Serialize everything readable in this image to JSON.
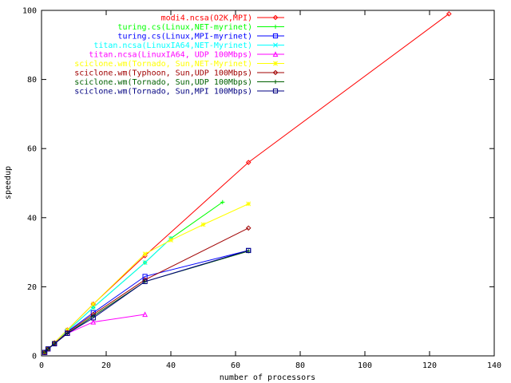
{
  "chart_data": {
    "type": "line",
    "title": "",
    "xlabel": "number of processors",
    "ylabel": "speedup",
    "xlim": [
      0,
      140
    ],
    "ylim": [
      0,
      100
    ],
    "xticks": [
      0,
      20,
      40,
      60,
      80,
      100,
      120,
      140
    ],
    "yticks": [
      0,
      20,
      40,
      60,
      80,
      100
    ],
    "grid": false,
    "legend_position": "top-right",
    "series": [
      {
        "name": "modi4.ncsa(O2K,MPI)",
        "color": "#ff0000",
        "marker": "diamond",
        "points": [
          [
            1,
            1
          ],
          [
            2,
            2
          ],
          [
            4,
            3.8
          ],
          [
            8,
            7.5
          ],
          [
            16,
            15
          ],
          [
            32,
            29
          ],
          [
            64,
            56
          ],
          [
            126,
            99
          ]
        ]
      },
      {
        "name": "turing.cs(Linux,NET-myrinet)",
        "color": "#00ff00",
        "marker": "plus",
        "points": [
          [
            1,
            1
          ],
          [
            2,
            2
          ],
          [
            4,
            3.8
          ],
          [
            8,
            7.2
          ],
          [
            16,
            14
          ],
          [
            32,
            27
          ],
          [
            40,
            34
          ],
          [
            56,
            44.5
          ]
        ]
      },
      {
        "name": "turing.cs(Linux,MPI-myrinet)",
        "color": "#0000ff",
        "marker": "square",
        "points": [
          [
            1,
            1
          ],
          [
            2,
            2
          ],
          [
            4,
            3.6
          ],
          [
            8,
            7
          ],
          [
            16,
            12.5
          ],
          [
            32,
            23
          ],
          [
            64,
            30.5
          ]
        ]
      },
      {
        "name": "titan.ncsa(LinuxIA64,NET-Myrinet)",
        "color": "#00ffff",
        "marker": "cross",
        "points": [
          [
            1,
            1
          ],
          [
            2,
            2
          ],
          [
            4,
            3.7
          ],
          [
            8,
            7.2
          ],
          [
            16,
            14
          ],
          [
            32,
            27
          ],
          [
            40,
            34
          ]
        ]
      },
      {
        "name": "titan.ncsa(LinuxIA64, UDP 100Mbps)",
        "color": "#ff00ff",
        "marker": "triangle",
        "points": [
          [
            1,
            1
          ],
          [
            2,
            2
          ],
          [
            4,
            3.5
          ],
          [
            8,
            6.5
          ],
          [
            16,
            9.8
          ],
          [
            32,
            12
          ]
        ]
      },
      {
        "name": "sciclone.wm(Tornado, Sun,NET-Myrinet)",
        "color": "#ffff00",
        "marker": "star",
        "points": [
          [
            1,
            1
          ],
          [
            2,
            2
          ],
          [
            4,
            3.8
          ],
          [
            8,
            7.5
          ],
          [
            16,
            15
          ],
          [
            32,
            29.5
          ],
          [
            40,
            33.5
          ],
          [
            50,
            38
          ],
          [
            64,
            44
          ]
        ]
      },
      {
        "name": "sciclone.wm(Typhoon, Sun,UDP 100Mbps)",
        "color": "#a00000",
        "marker": "diamond",
        "points": [
          [
            1,
            1
          ],
          [
            2,
            2
          ],
          [
            4,
            3.6
          ],
          [
            8,
            6.8
          ],
          [
            16,
            12
          ],
          [
            32,
            22
          ],
          [
            64,
            37
          ]
        ]
      },
      {
        "name": "sciclone.wm(Tornado, Sun,UDP 100Mbps)",
        "color": "#006000",
        "marker": "plus",
        "points": [
          [
            1,
            1
          ],
          [
            2,
            2
          ],
          [
            4,
            3.5
          ],
          [
            8,
            6.5
          ],
          [
            16,
            11.5
          ],
          [
            32,
            21.5
          ],
          [
            64,
            30.3
          ]
        ]
      },
      {
        "name": "sciclone.wm(Tornado, Sun,MPI 100Mbps)",
        "color": "#000080",
        "marker": "square",
        "points": [
          [
            1,
            1
          ],
          [
            2,
            2
          ],
          [
            4,
            3.5
          ],
          [
            8,
            6.5
          ],
          [
            16,
            11
          ],
          [
            32,
            21.5
          ],
          [
            64,
            30.5
          ]
        ]
      }
    ]
  }
}
